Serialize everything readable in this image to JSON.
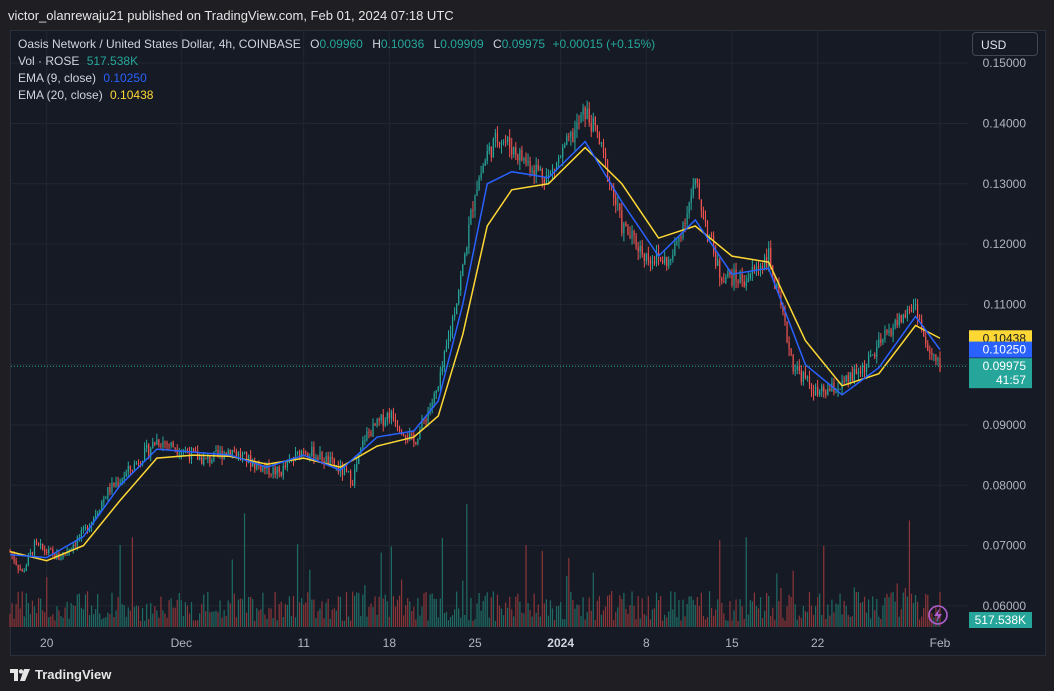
{
  "header": {
    "publisher": "victor_olanrewaju21 published on TradingView.com, Feb 01, 2024 07:18 UTC"
  },
  "legend": {
    "symbol": "Oasis Network / United States Dollar, 4h, COINBASE",
    "o_label": "O",
    "o_value": "0.09960",
    "h_label": "H",
    "h_value": "0.10036",
    "l_label": "L",
    "l_value": "0.09909",
    "c_label": "C",
    "c_value": "0.09975",
    "change": "+0.00015 (+0.15%)",
    "vol_label": "Vol · ROSE",
    "vol_value": "517.538K",
    "ema9_label": "EMA (9, close)",
    "ema9_value": "0.10250",
    "ema20_label": "EMA (20, close)",
    "ema20_value": "0.10438"
  },
  "currency_button": "USD",
  "price_tags": {
    "ema20": "0.10438",
    "ema9": "0.10250",
    "last": "0.09975",
    "countdown": "41:57",
    "volume": "517.538K"
  },
  "colors": {
    "up": "#26a69a",
    "down": "#ef5350",
    "ema9": "#2962ff",
    "ema20": "#fdd835",
    "volume_up": "#1f6b64",
    "volume_down": "#8a3537",
    "grid": "#22262f",
    "text": "#b2b5be"
  },
  "footer": {
    "brand": "TradingView",
    "logo_icon": "tradingview-logo-icon",
    "flash_icon": "lightning-icon"
  },
  "chart_data": {
    "type": "candlestick",
    "title": "Oasis Network / United States Dollar, 4h, COINBASE",
    "y_axis": {
      "ticks": [
        "0.15000",
        "0.14000",
        "0.13000",
        "0.12000",
        "0.11000",
        "0.10000",
        "0.09000",
        "0.08000",
        "0.07000",
        "0.06000"
      ],
      "ylim": [
        0.0565,
        0.1555
      ],
      "position": "right"
    },
    "x_axis": {
      "ticks": [
        "20",
        "Dec",
        "11",
        "18",
        "25",
        "2024",
        "8",
        "15",
        "22",
        "Feb"
      ],
      "range": [
        "2023-11-17",
        "2024-02-01"
      ]
    },
    "grid": true,
    "series": [
      {
        "name": "ROSE/USD",
        "kind": "close-path",
        "points": [
          [
            "2023-11-17",
            0.069
          ],
          [
            "2023-11-18",
            0.0655
          ],
          [
            "2023-11-19",
            0.07
          ],
          [
            "2023-11-21",
            0.068
          ],
          [
            "2023-11-23",
            0.072
          ],
          [
            "2023-11-25",
            0.079
          ],
          [
            "2023-11-27",
            0.083
          ],
          [
            "2023-11-29",
            0.0875
          ],
          [
            "2023-12-01",
            0.086
          ],
          [
            "2023-12-03",
            0.084
          ],
          [
            "2023-12-05",
            0.086
          ],
          [
            "2023-12-07",
            0.0835
          ],
          [
            "2023-12-09",
            0.082
          ],
          [
            "2023-12-11",
            0.086
          ],
          [
            "2023-12-13",
            0.084
          ],
          [
            "2023-12-15",
            0.081
          ],
          [
            "2023-12-16",
            0.088
          ],
          [
            "2023-12-18",
            0.092
          ],
          [
            "2023-12-20",
            0.087
          ],
          [
            "2023-12-22",
            0.096
          ],
          [
            "2023-12-24",
            0.116
          ],
          [
            "2023-12-25",
            0.129
          ],
          [
            "2023-12-26",
            0.135
          ],
          [
            "2023-12-27",
            0.138
          ],
          [
            "2023-12-29",
            0.134
          ],
          [
            "2023-12-31",
            0.131
          ],
          [
            "2024-01-02",
            0.138
          ],
          [
            "2024-01-03",
            0.142
          ],
          [
            "2024-01-04",
            0.138
          ],
          [
            "2024-01-06",
            0.123
          ],
          [
            "2024-01-08",
            0.118
          ],
          [
            "2024-01-10",
            0.117
          ],
          [
            "2024-01-12",
            0.13
          ],
          [
            "2024-01-14",
            0.115
          ],
          [
            "2024-01-16",
            0.114
          ],
          [
            "2024-01-18",
            0.118
          ],
          [
            "2024-01-20",
            0.1
          ],
          [
            "2024-01-22",
            0.095
          ],
          [
            "2024-01-24",
            0.0965
          ],
          [
            "2024-01-26",
            0.1
          ],
          [
            "2024-01-28",
            0.106
          ],
          [
            "2024-01-30",
            0.11
          ],
          [
            "2024-01-31",
            0.102
          ],
          [
            "2024-02-01",
            0.09975
          ]
        ]
      },
      {
        "name": "EMA (9, close)",
        "points": [
          [
            "2023-11-17",
            0.0685
          ],
          [
            "2023-11-20",
            0.068
          ],
          [
            "2023-11-23",
            0.0715
          ],
          [
            "2023-11-26",
            0.08
          ],
          [
            "2023-11-29",
            0.086
          ],
          [
            "2023-12-02",
            0.0855
          ],
          [
            "2023-12-05",
            0.085
          ],
          [
            "2023-12-08",
            0.083
          ],
          [
            "2023-12-11",
            0.085
          ],
          [
            "2023-12-14",
            0.0825
          ],
          [
            "2023-12-17",
            0.088
          ],
          [
            "2023-12-20",
            0.089
          ],
          [
            "2023-12-22",
            0.094
          ],
          [
            "2023-12-24",
            0.11
          ],
          [
            "2023-12-26",
            0.13
          ],
          [
            "2023-12-28",
            0.132
          ],
          [
            "2023-12-31",
            0.131
          ],
          [
            "2024-01-03",
            0.137
          ],
          [
            "2024-01-06",
            0.127
          ],
          [
            "2024-01-09",
            0.118
          ],
          [
            "2024-01-12",
            0.124
          ],
          [
            "2024-01-15",
            0.115
          ],
          [
            "2024-01-18",
            0.116
          ],
          [
            "2024-01-21",
            0.1
          ],
          [
            "2024-01-24",
            0.095
          ],
          [
            "2024-01-27",
            0.0995
          ],
          [
            "2024-01-30",
            0.108
          ],
          [
            "2024-02-01",
            0.1025
          ]
        ]
      },
      {
        "name": "EMA (20, close)",
        "points": [
          [
            "2023-11-17",
            0.069
          ],
          [
            "2023-11-20",
            0.0675
          ],
          [
            "2023-11-23",
            0.07
          ],
          [
            "2023-11-26",
            0.0775
          ],
          [
            "2023-11-29",
            0.0845
          ],
          [
            "2023-12-02",
            0.085
          ],
          [
            "2023-12-05",
            0.0848
          ],
          [
            "2023-12-08",
            0.0835
          ],
          [
            "2023-12-11",
            0.0845
          ],
          [
            "2023-12-14",
            0.083
          ],
          [
            "2023-12-17",
            0.0865
          ],
          [
            "2023-12-20",
            0.088
          ],
          [
            "2023-12-22",
            0.0915
          ],
          [
            "2023-12-24",
            0.105
          ],
          [
            "2023-12-26",
            0.123
          ],
          [
            "2023-12-28",
            0.129
          ],
          [
            "2023-12-31",
            0.13
          ],
          [
            "2024-01-03",
            0.136
          ],
          [
            "2024-01-06",
            0.13
          ],
          [
            "2024-01-09",
            0.121
          ],
          [
            "2024-01-12",
            0.123
          ],
          [
            "2024-01-15",
            0.118
          ],
          [
            "2024-01-18",
            0.117
          ],
          [
            "2024-01-21",
            0.104
          ],
          [
            "2024-01-24",
            0.0965
          ],
          [
            "2024-01-27",
            0.0985
          ],
          [
            "2024-01-30",
            0.1065
          ],
          [
            "2024-02-01",
            0.10438
          ]
        ]
      }
    ],
    "last_price": 0.09975,
    "volume_last": "517.538K"
  }
}
